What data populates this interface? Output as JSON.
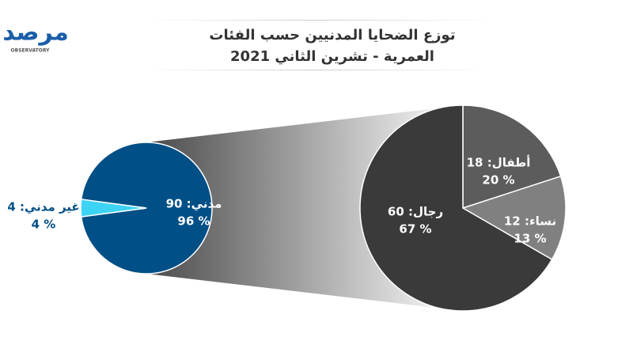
{
  "logo": {
    "text": "مرصد",
    "subtitle": "OBSERVATORY"
  },
  "title": [
    "توزع الضحايا المدنيين حسب الفئات",
    "العمرية - تشرين الثاني 2021"
  ],
  "chart_data": [
    {
      "type": "pie",
      "values": [
        90,
        4
      ],
      "value_labels": [
        "مدني: 90",
        "غير مدني: 4"
      ],
      "percents": [
        96,
        4
      ],
      "percent_labels": [
        "96 %",
        "4 %"
      ],
      "colors": [
        "#004f86",
        "#3dd3f5"
      ]
    },
    {
      "type": "pie",
      "values": [
        18,
        12,
        60
      ],
      "value_labels": [
        "أطفال: 18",
        "نساء: 12",
        "رجال: 60"
      ],
      "percents": [
        20,
        13,
        67
      ],
      "percent_labels": [
        "20 %",
        "13 %",
        "67 %"
      ],
      "colors": [
        "#5c5c5c",
        "#808080",
        "#3a3a3a"
      ]
    }
  ]
}
